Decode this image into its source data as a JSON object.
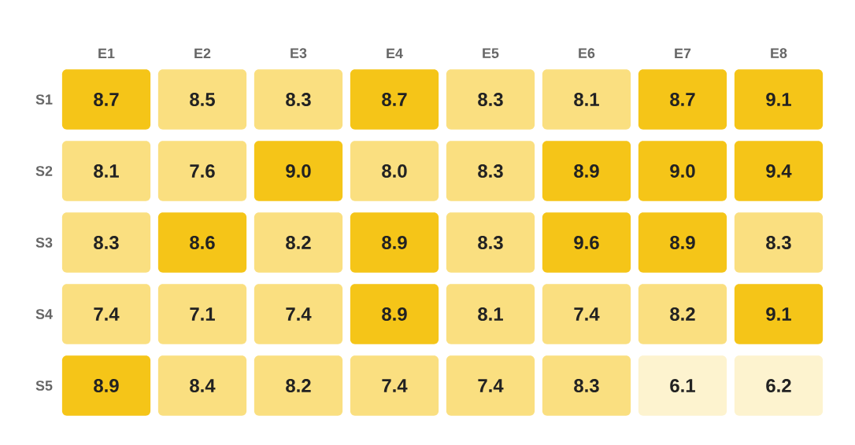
{
  "chart_data": {
    "type": "heatmap",
    "categories": [
      "E1",
      "E2",
      "E3",
      "E4",
      "E5",
      "E6",
      "E7",
      "E8"
    ],
    "y_categories": [
      "S1",
      "S2",
      "S3",
      "S4",
      "S5"
    ],
    "cells": [
      [
        8.7,
        8.5,
        8.3,
        8.7,
        8.3,
        8.1,
        8.7,
        9.1
      ],
      [
        8.1,
        7.6,
        9.0,
        8.0,
        8.3,
        8.9,
        9.0,
        9.4
      ],
      [
        8.3,
        8.6,
        8.2,
        8.9,
        8.3,
        9.6,
        8.9,
        8.3
      ],
      [
        7.4,
        7.1,
        7.4,
        8.9,
        8.1,
        7.4,
        8.2,
        9.1
      ],
      [
        8.9,
        8.4,
        8.2,
        7.4,
        7.4,
        8.3,
        6.1,
        6.2
      ]
    ],
    "cell_labels": [
      [
        "8.7",
        "8.5",
        "8.3",
        "8.7",
        "8.3",
        "8.1",
        "8.7",
        "9.1"
      ],
      [
        "8.1",
        "7.6",
        "9.0",
        "8.0",
        "8.3",
        "8.9",
        "9.0",
        "9.4"
      ],
      [
        "8.3",
        "8.6",
        "8.2",
        "8.9",
        "8.3",
        "9.6",
        "8.9",
        "8.3"
      ],
      [
        "7.4",
        "7.1",
        "7.4",
        "8.9",
        "8.1",
        "7.4",
        "8.2",
        "9.1"
      ],
      [
        "8.9",
        "8.4",
        "8.2",
        "7.4",
        "7.4",
        "8.3",
        "6.1",
        "6.2"
      ]
    ],
    "data_labels": true
  }
}
